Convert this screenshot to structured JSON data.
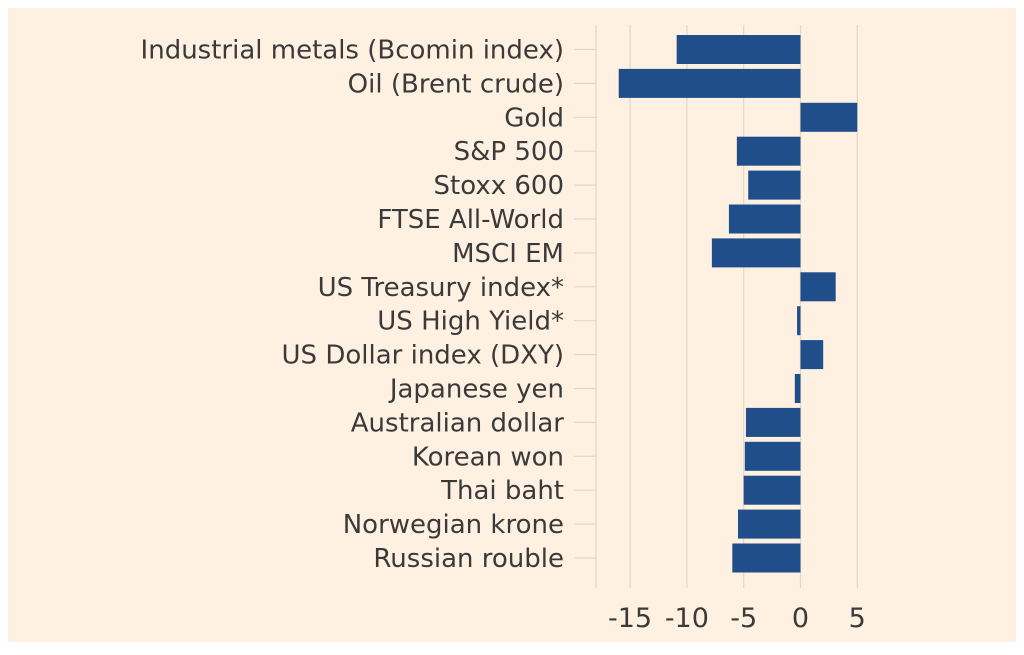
{
  "chart_data": {
    "type": "bar",
    "orientation": "horizontal",
    "categories": [
      "Industrial metals (Bcomin index)",
      "Oil (Brent crude)",
      "Gold",
      "S&P 500",
      "Stoxx 600",
      "FTSE All-World",
      "MSCI EM",
      "US Treasury index*",
      "US High Yield*",
      "US Dollar index (DXY)",
      "Japanese yen",
      "Australian dollar",
      "Korean won",
      "Thai baht",
      "Norwegian krone",
      "Russian rouble"
    ],
    "values": [
      -10.9,
      -16,
      5,
      -5.6,
      -4.6,
      -6.3,
      -7.8,
      3.1,
      -0.3,
      2,
      -0.5,
      -4.8,
      -4.9,
      -5,
      -5.5,
      -6
    ],
    "xlim": [
      -18,
      7
    ],
    "xticks": [
      -15,
      -10,
      -5,
      0,
      5
    ],
    "xtick_labels": [
      "-15",
      "-10",
      "-5",
      "0",
      "5"
    ],
    "grid": true,
    "colors": {
      "bar": "#1f4e8b",
      "background": "#fff1e1",
      "grid": "#e3d6c7",
      "text": "#3a3a3a"
    }
  }
}
